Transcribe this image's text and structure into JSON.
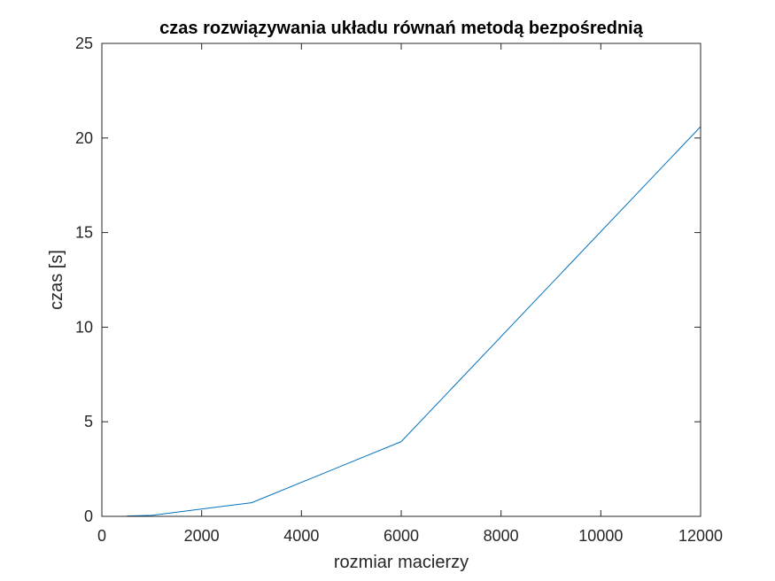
{
  "chart_data": {
    "type": "line",
    "title": "czas rozwiązywania układu równań metodą bezpośrednią",
    "xlabel": "rozmiar macierzy",
    "ylabel": "czas [s]",
    "xlim": [
      0,
      12000
    ],
    "ylim": [
      0,
      25
    ],
    "xticks": [
      0,
      2000,
      4000,
      6000,
      8000,
      10000,
      12000
    ],
    "yticks": [
      0,
      5,
      10,
      15,
      20,
      25
    ],
    "grid": false,
    "series": [
      {
        "color": "#0072bd",
        "x": [
          500,
          1000,
          3000,
          6000,
          12000
        ],
        "y": [
          0.02,
          0.05,
          0.72,
          3.95,
          20.6
        ]
      }
    ]
  }
}
